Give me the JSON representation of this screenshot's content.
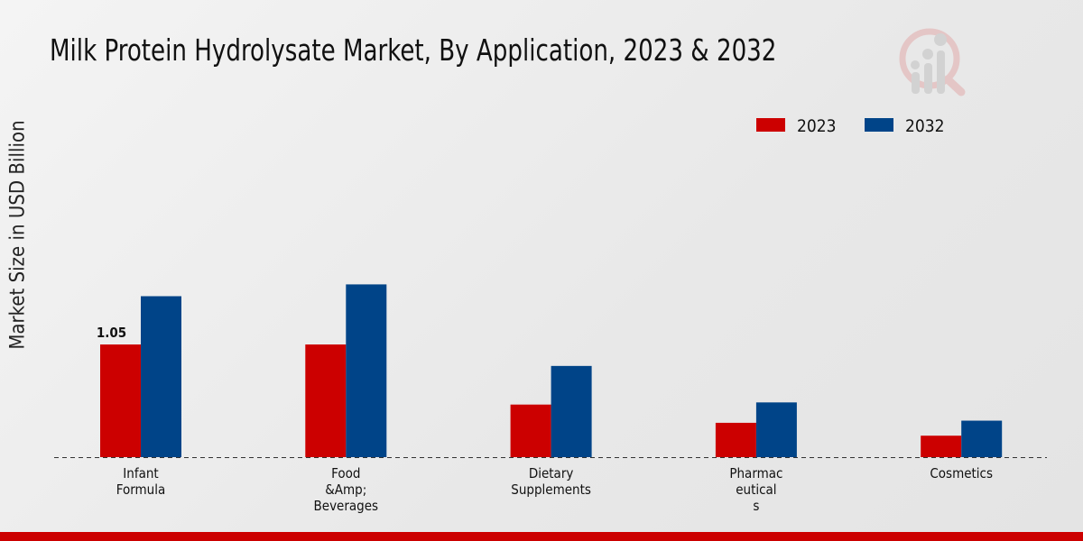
{
  "chart_data": {
    "type": "bar",
    "title": "Milk Protein Hydrolysate Market, By Application, 2023 & 2032",
    "xlabel": "",
    "ylabel": "Market Size in USD Billion",
    "categories": [
      [
        "Infant",
        "Formula"
      ],
      [
        "Food",
        "&Amp;",
        "Beverages"
      ],
      [
        "Dietary",
        "Supplements"
      ],
      [
        "Pharmac",
        "eutical",
        "s"
      ],
      [
        "Cosmetics"
      ]
    ],
    "series": [
      {
        "name": "2023",
        "color": "#cc0000",
        "values": [
          1.05,
          1.05,
          0.49,
          0.32,
          0.2
        ]
      },
      {
        "name": "2032",
        "color": "#004488",
        "values": [
          1.5,
          1.61,
          0.85,
          0.51,
          0.34
        ]
      }
    ],
    "data_labels": [
      {
        "series": 0,
        "index": 0,
        "text": "1.05"
      }
    ],
    "legend": "top-right",
    "grid": false
  }
}
